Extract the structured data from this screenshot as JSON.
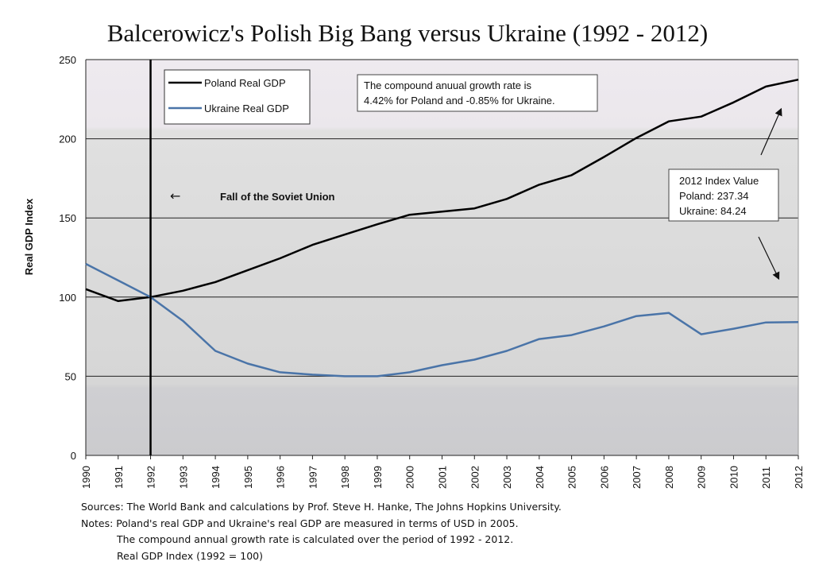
{
  "title": "Balcerowicz's Polish Big Bang versus Ukraine (1992 - 2012)",
  "chart_data": {
    "type": "line",
    "title": "Balcerowicz's Polish Big Bang versus Ukraine (1992 - 2012)",
    "xlabel": "",
    "ylabel": "Real GDP Index",
    "categories": [
      "1990",
      "1991",
      "1992",
      "1993",
      "1994",
      "1995",
      "1996",
      "1997",
      "1998",
      "1999",
      "2000",
      "2001",
      "2002",
      "2003",
      "2004",
      "2005",
      "2006",
      "2007",
      "2008",
      "2009",
      "2010",
      "2011",
      "2012"
    ],
    "ylim": [
      0,
      250
    ],
    "yticks": [
      "0",
      "50",
      "100",
      "150",
      "200",
      "250"
    ],
    "grid": true,
    "legend_position": "top-left",
    "series": [
      {
        "name": "Poland Real GDP",
        "color": "#000000",
        "values": [
          105,
          97.5,
          100,
          104,
          109.5,
          117,
          124.5,
          133,
          139.5,
          146,
          152,
          154,
          156,
          162,
          171,
          177,
          188.5,
          200.5,
          211,
          214,
          223,
          233,
          237.34
        ]
      },
      {
        "name": "Ukraine Real GDP",
        "color": "#4a74a8",
        "values": [
          121,
          110.5,
          100,
          85,
          66,
          58,
          52.5,
          51,
          50,
          50,
          52.5,
          57,
          60.5,
          66,
          73.5,
          76,
          81.5,
          88,
          90,
          76.5,
          80,
          84,
          84.24
        ]
      }
    ],
    "annotations": {
      "fall_label": "Fall of the Soviet Union",
      "fall_arrow": "←",
      "cagr_line1": "The compound anuual growth rate is",
      "cagr_line2": "4.42% for Poland and -0.85% for Ukraine.",
      "index_line1": "2012 Index Value",
      "index_line2": "Poland:  237.34",
      "index_line3": "Ukraine: 84.24"
    }
  },
  "notes": {
    "sources": "Sources: The World Bank and calculations by Prof. Steve H. Hanke, The Johns Hopkins University.",
    "notes1": "Notes: Poland's real GDP and Ukraine's real GDP are measured in terms of USD in 2005.",
    "notes2": "The compound annual growth rate is calculated over the period of 1992 - 2012.",
    "notes3": "Real GDP Index (1992 = 100)"
  }
}
